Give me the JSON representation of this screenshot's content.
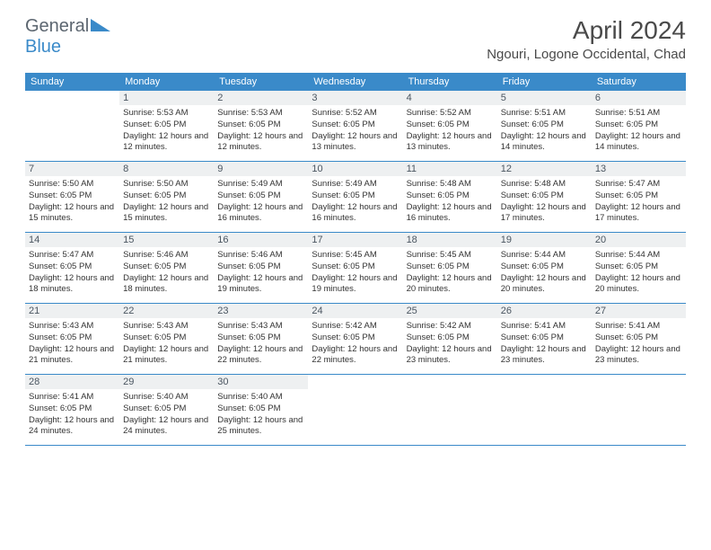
{
  "logo": {
    "text1": "General",
    "text2": "Blue"
  },
  "title": "April 2024",
  "location": "Ngouri, Logone Occidental, Chad",
  "colors": {
    "header_bg": "#3a8ac9",
    "header_text": "#ffffff",
    "daynum_bg": "#eef0f1",
    "daynum_text": "#4a5560",
    "body_text": "#333333",
    "title_text": "#4a4a4a",
    "logo_gray": "#5c6670"
  },
  "day_names": [
    "Sunday",
    "Monday",
    "Tuesday",
    "Wednesday",
    "Thursday",
    "Friday",
    "Saturday"
  ],
  "weeks": [
    [
      {
        "n": "",
        "sr": "",
        "ss": "",
        "dl": ""
      },
      {
        "n": "1",
        "sr": "Sunrise: 5:53 AM",
        "ss": "Sunset: 6:05 PM",
        "dl": "Daylight: 12 hours and 12 minutes."
      },
      {
        "n": "2",
        "sr": "Sunrise: 5:53 AM",
        "ss": "Sunset: 6:05 PM",
        "dl": "Daylight: 12 hours and 12 minutes."
      },
      {
        "n": "3",
        "sr": "Sunrise: 5:52 AM",
        "ss": "Sunset: 6:05 PM",
        "dl": "Daylight: 12 hours and 13 minutes."
      },
      {
        "n": "4",
        "sr": "Sunrise: 5:52 AM",
        "ss": "Sunset: 6:05 PM",
        "dl": "Daylight: 12 hours and 13 minutes."
      },
      {
        "n": "5",
        "sr": "Sunrise: 5:51 AM",
        "ss": "Sunset: 6:05 PM",
        "dl": "Daylight: 12 hours and 14 minutes."
      },
      {
        "n": "6",
        "sr": "Sunrise: 5:51 AM",
        "ss": "Sunset: 6:05 PM",
        "dl": "Daylight: 12 hours and 14 minutes."
      }
    ],
    [
      {
        "n": "7",
        "sr": "Sunrise: 5:50 AM",
        "ss": "Sunset: 6:05 PM",
        "dl": "Daylight: 12 hours and 15 minutes."
      },
      {
        "n": "8",
        "sr": "Sunrise: 5:50 AM",
        "ss": "Sunset: 6:05 PM",
        "dl": "Daylight: 12 hours and 15 minutes."
      },
      {
        "n": "9",
        "sr": "Sunrise: 5:49 AM",
        "ss": "Sunset: 6:05 PM",
        "dl": "Daylight: 12 hours and 16 minutes."
      },
      {
        "n": "10",
        "sr": "Sunrise: 5:49 AM",
        "ss": "Sunset: 6:05 PM",
        "dl": "Daylight: 12 hours and 16 minutes."
      },
      {
        "n": "11",
        "sr": "Sunrise: 5:48 AM",
        "ss": "Sunset: 6:05 PM",
        "dl": "Daylight: 12 hours and 16 minutes."
      },
      {
        "n": "12",
        "sr": "Sunrise: 5:48 AM",
        "ss": "Sunset: 6:05 PM",
        "dl": "Daylight: 12 hours and 17 minutes."
      },
      {
        "n": "13",
        "sr": "Sunrise: 5:47 AM",
        "ss": "Sunset: 6:05 PM",
        "dl": "Daylight: 12 hours and 17 minutes."
      }
    ],
    [
      {
        "n": "14",
        "sr": "Sunrise: 5:47 AM",
        "ss": "Sunset: 6:05 PM",
        "dl": "Daylight: 12 hours and 18 minutes."
      },
      {
        "n": "15",
        "sr": "Sunrise: 5:46 AM",
        "ss": "Sunset: 6:05 PM",
        "dl": "Daylight: 12 hours and 18 minutes."
      },
      {
        "n": "16",
        "sr": "Sunrise: 5:46 AM",
        "ss": "Sunset: 6:05 PM",
        "dl": "Daylight: 12 hours and 19 minutes."
      },
      {
        "n": "17",
        "sr": "Sunrise: 5:45 AM",
        "ss": "Sunset: 6:05 PM",
        "dl": "Daylight: 12 hours and 19 minutes."
      },
      {
        "n": "18",
        "sr": "Sunrise: 5:45 AM",
        "ss": "Sunset: 6:05 PM",
        "dl": "Daylight: 12 hours and 20 minutes."
      },
      {
        "n": "19",
        "sr": "Sunrise: 5:44 AM",
        "ss": "Sunset: 6:05 PM",
        "dl": "Daylight: 12 hours and 20 minutes."
      },
      {
        "n": "20",
        "sr": "Sunrise: 5:44 AM",
        "ss": "Sunset: 6:05 PM",
        "dl": "Daylight: 12 hours and 20 minutes."
      }
    ],
    [
      {
        "n": "21",
        "sr": "Sunrise: 5:43 AM",
        "ss": "Sunset: 6:05 PM",
        "dl": "Daylight: 12 hours and 21 minutes."
      },
      {
        "n": "22",
        "sr": "Sunrise: 5:43 AM",
        "ss": "Sunset: 6:05 PM",
        "dl": "Daylight: 12 hours and 21 minutes."
      },
      {
        "n": "23",
        "sr": "Sunrise: 5:43 AM",
        "ss": "Sunset: 6:05 PM",
        "dl": "Daylight: 12 hours and 22 minutes."
      },
      {
        "n": "24",
        "sr": "Sunrise: 5:42 AM",
        "ss": "Sunset: 6:05 PM",
        "dl": "Daylight: 12 hours and 22 minutes."
      },
      {
        "n": "25",
        "sr": "Sunrise: 5:42 AM",
        "ss": "Sunset: 6:05 PM",
        "dl": "Daylight: 12 hours and 23 minutes."
      },
      {
        "n": "26",
        "sr": "Sunrise: 5:41 AM",
        "ss": "Sunset: 6:05 PM",
        "dl": "Daylight: 12 hours and 23 minutes."
      },
      {
        "n": "27",
        "sr": "Sunrise: 5:41 AM",
        "ss": "Sunset: 6:05 PM",
        "dl": "Daylight: 12 hours and 23 minutes."
      }
    ],
    [
      {
        "n": "28",
        "sr": "Sunrise: 5:41 AM",
        "ss": "Sunset: 6:05 PM",
        "dl": "Daylight: 12 hours and 24 minutes."
      },
      {
        "n": "29",
        "sr": "Sunrise: 5:40 AM",
        "ss": "Sunset: 6:05 PM",
        "dl": "Daylight: 12 hours and 24 minutes."
      },
      {
        "n": "30",
        "sr": "Sunrise: 5:40 AM",
        "ss": "Sunset: 6:05 PM",
        "dl": "Daylight: 12 hours and 25 minutes."
      },
      {
        "n": "",
        "sr": "",
        "ss": "",
        "dl": ""
      },
      {
        "n": "",
        "sr": "",
        "ss": "",
        "dl": ""
      },
      {
        "n": "",
        "sr": "",
        "ss": "",
        "dl": ""
      },
      {
        "n": "",
        "sr": "",
        "ss": "",
        "dl": ""
      }
    ]
  ]
}
